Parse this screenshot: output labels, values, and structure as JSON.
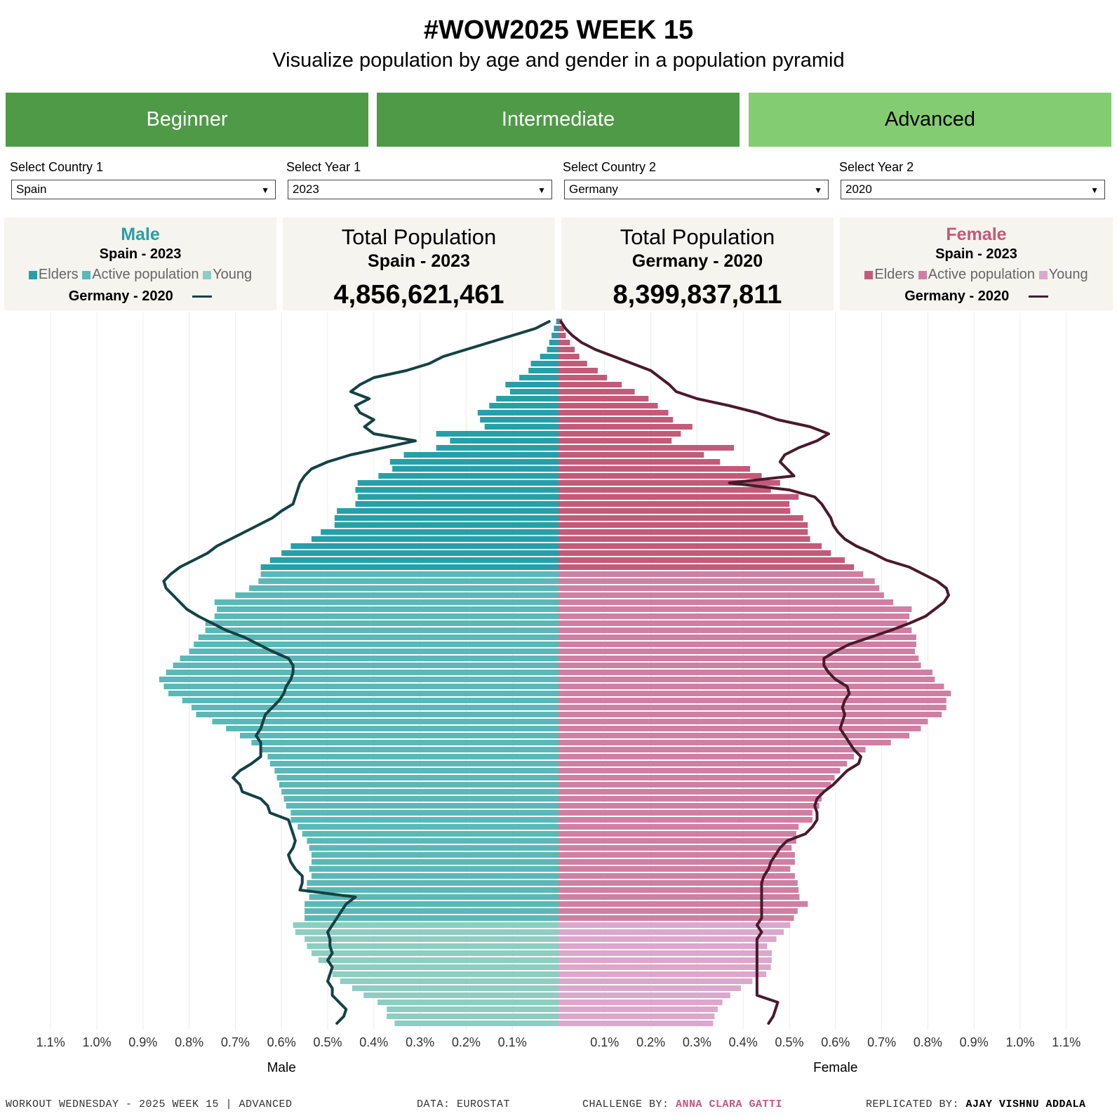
{
  "header": {
    "title": "#WOW2025 WEEK 15",
    "subtitle": "Visualize population by age and gender in a population pyramid"
  },
  "tabs": [
    {
      "label": "Beginner",
      "active": false
    },
    {
      "label": "Intermediate",
      "active": false
    },
    {
      "label": "Advanced",
      "active": true
    }
  ],
  "filters": [
    {
      "label": "Select Country 1",
      "value": "Spain"
    },
    {
      "label": "Select Year 1",
      "value": "2023"
    },
    {
      "label": "Select Country 2",
      "value": "Germany"
    },
    {
      "label": "Select Year 2",
      "value": "2020"
    }
  ],
  "male_card": {
    "title": "Male",
    "subtitle": "Spain - 2023",
    "legend": [
      "Elders",
      "Active population",
      "Young"
    ],
    "line_label": "Germany - 2020"
  },
  "female_card": {
    "title": "Female",
    "subtitle": "Spain - 2023",
    "legend": [
      "Elders",
      "Active population",
      "Young"
    ],
    "line_label": "Germany - 2020"
  },
  "totals": [
    {
      "heading": "Total Population",
      "subtitle": "Spain - 2023",
      "value": "4,856,621,461"
    },
    {
      "heading": "Total Population",
      "subtitle": "Germany - 2020",
      "value": "8,399,837,811"
    }
  ],
  "colors": {
    "tab_dark": "#4f9a47",
    "tab_light": "#84cc72",
    "male_title": "#2a9da4",
    "female_title": "#c4587a",
    "male_elders": "#25a0a8",
    "male_active": "#5ab8b8",
    "male_young": "#8dcdc2",
    "female_elders": "#c45a7a",
    "female_active": "#d07fa4",
    "female_young": "#dca7cd",
    "male_line": "#144244",
    "female_line": "#4a1a2c",
    "card_bg": "#f5f4ee"
  },
  "chart_data": {
    "type": "bar",
    "orientation": "horizontal-pyramid",
    "age_order": "rows listed from age 0 (bottom) to age 100 (top)",
    "xlim": [
      -1.1,
      1.1
    ],
    "male_ticks": [
      "1.1%",
      "1.0%",
      "0.9%",
      "0.8%",
      "0.7%",
      "0.6%",
      "0.5%",
      "0.4%",
      "0.3%",
      "0.2%",
      "0.1%"
    ],
    "female_ticks": [
      "0.1%",
      "0.2%",
      "0.3%",
      "0.4%",
      "0.5%",
      "0.6%",
      "0.7%",
      "0.8%",
      "0.9%",
      "1.0%",
      "1.1%"
    ],
    "male_axis_label": "Male",
    "female_axis_label": "Female",
    "young_max_age": 14,
    "elders_min_age": 65,
    "male_pct": [
      0.355,
      0.372,
      0.372,
      0.392,
      0.422,
      0.447,
      0.473,
      0.49,
      0.49,
      0.52,
      0.535,
      0.545,
      0.55,
      0.57,
      0.575,
      0.55,
      0.55,
      0.55,
      0.54,
      0.545,
      0.545,
      0.535,
      0.54,
      0.535,
      0.535,
      0.54,
      0.545,
      0.555,
      0.565,
      0.58,
      0.58,
      0.59,
      0.595,
      0.6,
      0.605,
      0.61,
      0.615,
      0.625,
      0.63,
      0.645,
      0.665,
      0.69,
      0.72,
      0.75,
      0.785,
      0.795,
      0.815,
      0.845,
      0.855,
      0.865,
      0.85,
      0.835,
      0.82,
      0.8,
      0.79,
      0.78,
      0.765,
      0.765,
      0.745,
      0.74,
      0.745,
      0.7,
      0.67,
      0.65,
      0.645,
      0.645,
      0.625,
      0.6,
      0.58,
      0.535,
      0.515,
      0.485,
      0.485,
      0.48,
      0.44,
      0.435,
      0.44,
      0.435,
      0.39,
      0.36,
      0.365,
      0.335,
      0.265,
      0.235,
      0.265,
      0.16,
      0.17,
      0.175,
      0.15,
      0.135,
      0.105,
      0.115,
      0.085,
      0.065,
      0.06,
      0.04,
      0.025,
      0.02,
      0.015,
      0.01,
      0.005
    ],
    "female_pct": [
      0.335,
      0.338,
      0.345,
      0.355,
      0.372,
      0.395,
      0.42,
      0.45,
      0.46,
      0.462,
      0.462,
      0.452,
      0.472,
      0.488,
      0.502,
      0.51,
      0.518,
      0.54,
      0.522,
      0.52,
      0.518,
      0.512,
      0.502,
      0.512,
      0.512,
      0.505,
      0.515,
      0.515,
      0.52,
      0.55,
      0.55,
      0.565,
      0.57,
      0.575,
      0.59,
      0.598,
      0.61,
      0.625,
      0.64,
      0.665,
      0.72,
      0.76,
      0.785,
      0.8,
      0.83,
      0.84,
      0.84,
      0.85,
      0.835,
      0.815,
      0.81,
      0.785,
      0.78,
      0.772,
      0.775,
      0.775,
      0.765,
      0.755,
      0.76,
      0.765,
      0.725,
      0.705,
      0.695,
      0.685,
      0.66,
      0.64,
      0.62,
      0.59,
      0.57,
      0.545,
      0.54,
      0.54,
      0.53,
      0.502,
      0.5,
      0.52,
      0.46,
      0.48,
      0.44,
      0.415,
      0.35,
      0.315,
      0.38,
      0.245,
      0.265,
      0.29,
      0.248,
      0.238,
      0.215,
      0.195,
      0.165,
      0.137,
      0.105,
      0.085,
      0.062,
      0.045,
      0.035,
      0.025,
      0.016,
      0.012,
      0.008
    ],
    "male_line_pct": [
      0.48,
      0.465,
      0.46,
      0.475,
      0.49,
      0.49,
      0.5,
      0.495,
      0.49,
      0.5,
      0.49,
      0.495,
      0.495,
      0.5,
      0.49,
      0.48,
      0.47,
      0.46,
      0.44,
      0.56,
      0.555,
      0.555,
      0.57,
      0.58,
      0.585,
      0.575,
      0.57,
      0.575,
      0.58,
      0.585,
      0.625,
      0.63,
      0.645,
      0.685,
      0.69,
      0.705,
      0.69,
      0.665,
      0.645,
      0.645,
      0.645,
      0.655,
      0.645,
      0.64,
      0.635,
      0.62,
      0.605,
      0.595,
      0.59,
      0.58,
      0.575,
      0.575,
      0.585,
      0.62,
      0.65,
      0.68,
      0.72,
      0.75,
      0.78,
      0.805,
      0.82,
      0.835,
      0.85,
      0.855,
      0.84,
      0.82,
      0.79,
      0.76,
      0.74,
      0.71,
      0.68,
      0.65,
      0.62,
      0.6,
      0.575,
      0.57,
      0.565,
      0.56,
      0.55,
      0.535,
      0.5,
      0.45,
      0.38,
      0.31,
      0.4,
      0.42,
      0.4,
      0.43,
      0.44,
      0.41,
      0.45,
      0.43,
      0.4,
      0.33,
      0.28,
      0.25,
      0.2,
      0.15,
      0.1,
      0.05,
      0.02
    ],
    "female_line_pct": [
      0.455,
      0.465,
      0.47,
      0.475,
      0.43,
      0.43,
      0.43,
      0.43,
      0.43,
      0.43,
      0.43,
      0.43,
      0.43,
      0.44,
      0.43,
      0.44,
      0.44,
      0.44,
      0.44,
      0.44,
      0.44,
      0.445,
      0.455,
      0.46,
      0.47,
      0.48,
      0.495,
      0.535,
      0.55,
      0.56,
      0.56,
      0.555,
      0.56,
      0.575,
      0.595,
      0.61,
      0.625,
      0.65,
      0.655,
      0.64,
      0.63,
      0.62,
      0.61,
      0.615,
      0.62,
      0.615,
      0.62,
      0.63,
      0.625,
      0.6,
      0.585,
      0.575,
      0.575,
      0.6,
      0.63,
      0.675,
      0.72,
      0.76,
      0.795,
      0.815,
      0.835,
      0.845,
      0.84,
      0.82,
      0.79,
      0.76,
      0.71,
      0.68,
      0.645,
      0.62,
      0.605,
      0.595,
      0.59,
      0.58,
      0.57,
      0.555,
      0.5,
      0.37,
      0.51,
      0.495,
      0.48,
      0.49,
      0.52,
      0.56,
      0.585,
      0.545,
      0.475,
      0.43,
      0.37,
      0.3,
      0.255,
      0.24,
      0.22,
      0.2,
      0.16,
      0.12,
      0.08,
      0.05,
      0.03,
      0.015,
      0.005
    ]
  },
  "footer": {
    "left": "WORKOUT WEDNESDAY - 2025 WEEK 15 | ADVANCED",
    "data_label": "DATA: EUROSTAT",
    "challenge_prefix": "CHALLENGE BY: ",
    "challenge_name": "ANNA CLARA GATTI",
    "replicated_prefix": "REPLICATED BY: ",
    "replicated_name": "AJAY VISHNU ADDALA"
  }
}
